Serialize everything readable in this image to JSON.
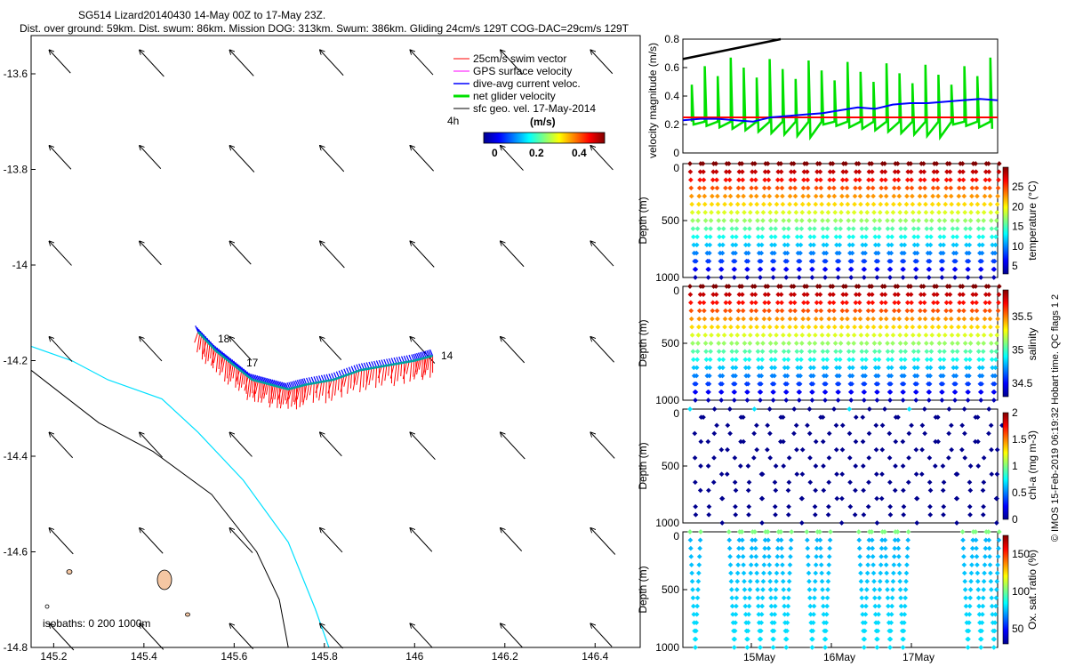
{
  "title_line1": "SG514 Lizard20140430 14-May 00Z to 17-May 23Z.",
  "title_line2": "Dist. over ground: 59km. Dist. swum: 86km. Mission DOG: 313km. Swum: 386km. Gliding 24cm/s 129T COG-DAC=29cm/s 129T",
  "colors": {
    "swim": "#ff0000",
    "gps": "#ff00ff",
    "dac": "#0000ff",
    "net": "#00e000",
    "sfc": "#000000",
    "isobath_0": "#000000",
    "isobath_200": "#000000",
    "isobath_1000": "#00e0ff",
    "island_fill": "#f5c7a3"
  },
  "map": {
    "x_ticks": [
      "145.2",
      "145.4",
      "145.6",
      "145.8",
      "146",
      "146.2",
      "146.4"
    ],
    "y_ticks": [
      "-13.6",
      "-13.8",
      "-14",
      "-14.2",
      "-14.4",
      "-14.6",
      "-14.8"
    ],
    "xlim": [
      145.15,
      146.5
    ],
    "ylim": [
      -14.8,
      -13.52
    ],
    "legend": {
      "swim": "25cm/s swim vector",
      "gps": "GPS surface velocity",
      "dac": "dive-avg current veloc.",
      "net": "net glider velocity",
      "sfc": "sfc geo. vel. 17-May-2014",
      "interval": "4h"
    },
    "colorbar": {
      "label": "(m/s)",
      "ticks": [
        "0",
        "0.2",
        "0.4"
      ],
      "range": [
        0,
        0.5
      ]
    },
    "day_labels": [
      "18",
      "17",
      "14"
    ],
    "isobath_text": "isobaths: 0   200  1000m"
  },
  "panels": {
    "velocity": {
      "ylabel": "velocity magnitude (m/s)",
      "y_ticks": [
        "0",
        "0.2",
        "0.4",
        "0.6",
        "0.8"
      ],
      "ylim": [
        0,
        0.8
      ],
      "swim_speed": 0.25
    },
    "temperature": {
      "ylabel": "temperature (°C)",
      "cbar_ticks": [
        "5",
        "10",
        "15",
        "20",
        "25"
      ],
      "crange": [
        3,
        30
      ]
    },
    "salinity": {
      "ylabel": "salinity",
      "cbar_ticks": [
        "34.5",
        "35",
        "35.5"
      ],
      "crange": [
        34.3,
        35.9
      ]
    },
    "chla": {
      "ylabel": "chl-a (mg m-3)",
      "cbar_ticks": [
        "0",
        "0.5",
        "1",
        "1.5",
        "2"
      ],
      "crange": [
        0,
        2
      ]
    },
    "oxygen": {
      "ylabel": "Ox. sat. ratio (%)",
      "cbar_ticks": [
        "50",
        "100",
        "150"
      ],
      "crange": [
        30,
        175
      ]
    },
    "depth_label": "Depth (m)",
    "depth_ticks": [
      "0",
      "500",
      "1000"
    ],
    "x_ticks": [
      "15May",
      "16May",
      "17May"
    ]
  },
  "watermark": "© IMOS 15-Feb-2019 06:19:32 Hobart time. QC flags 1  2",
  "chart_data": {
    "type": "scatter",
    "title": "SG514 Lizard20140430 14-May 00Z to 17-May 23Z.",
    "map_track": {
      "x": [
        145.52,
        145.56,
        145.6,
        145.64,
        145.68,
        145.72,
        145.76,
        145.82,
        145.88,
        145.94,
        146.0,
        146.04
      ],
      "y": [
        -14.14,
        -14.18,
        -14.21,
        -14.24,
        -14.25,
        -14.26,
        -14.25,
        -14.24,
        -14.22,
        -14.21,
        -14.2,
        -14.19
      ]
    },
    "dives": 24,
    "depth_max_m": 1000,
    "velocity_series": [
      {
        "name": "dive-avg current veloc.",
        "x_start": "14-May",
        "values": [
          0.23,
          0.24,
          0.24,
          0.23,
          0.22,
          0.25,
          0.26,
          0.27,
          0.28,
          0.3,
          0.32,
          0.31,
          0.34,
          0.35,
          0.35,
          0.36,
          0.37,
          0.38,
          0.37
        ]
      },
      {
        "name": "25cm/s swim vector",
        "values": [
          0.25
        ]
      }
    ]
  }
}
